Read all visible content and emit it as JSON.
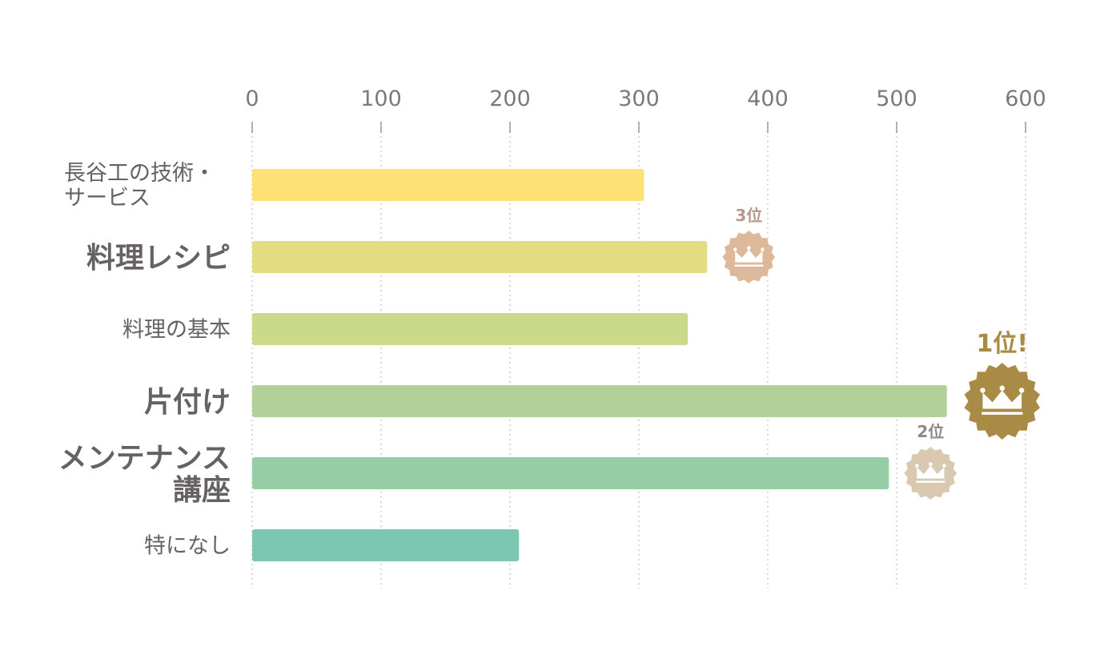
{
  "chart_data": {
    "type": "bar",
    "orientation": "horizontal",
    "xlim": [
      0,
      600
    ],
    "ticks": [
      0,
      100,
      200,
      300,
      400,
      500,
      600
    ],
    "tick_labels": [
      "0",
      "100",
      "200",
      "300",
      "400",
      "500",
      "600"
    ],
    "grid": true,
    "categories": [
      {
        "label": [
          "長谷工の技術・",
          "サービス"
        ],
        "emphasis": false
      },
      {
        "label": [
          "料理レシピ"
        ],
        "emphasis": true
      },
      {
        "label": [
          "料理の基本"
        ],
        "emphasis": false
      },
      {
        "label": [
          "片付け"
        ],
        "emphasis": true
      },
      {
        "label": [
          "メンテナンス",
          "講座"
        ],
        "emphasis": true
      },
      {
        "label": [
          "特になし"
        ],
        "emphasis": false
      }
    ],
    "values": [
      304,
      353,
      338,
      539,
      494,
      207
    ],
    "bar_colors": [
      "#fde174",
      "#e3dc80",
      "#cad98a",
      "#b1d198",
      "#96cda5",
      "#7bc7b2"
    ],
    "rank_badges": [
      {
        "category_index": 3,
        "text": "1位!",
        "color": "#a98b45",
        "label_color": "#a98b45",
        "size": "large"
      },
      {
        "category_index": 4,
        "text": "2位",
        "color": "#d9c9b1",
        "label_color": "#8f8a86",
        "size": "small"
      },
      {
        "category_index": 1,
        "text": "3位",
        "color": "#ddb899",
        "label_color": "#b7988b",
        "size": "small"
      }
    ],
    "colors": {
      "tick_text": "#7c7a78",
      "label_text": "#666262",
      "grid": "#cdcdcd"
    }
  }
}
